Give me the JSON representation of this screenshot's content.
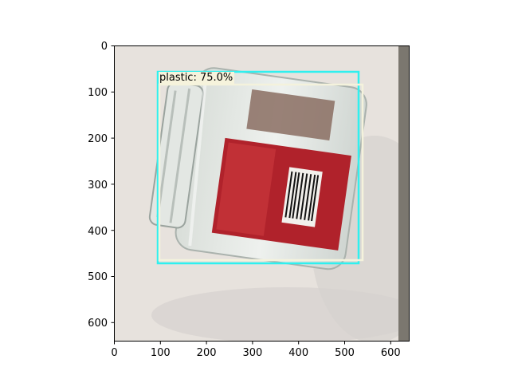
{
  "image": {
    "description_icon": "glass-jar-photo",
    "colors": {
      "background": "#e7e2dd",
      "shadow": "#d4d0cd",
      "box_cyan": "#2ff0ef",
      "box_cream": "#f4f2dc",
      "label_red": "#b0222b"
    }
  },
  "detection": {
    "label": "plastic: 75.0%",
    "class": "plastic",
    "score_percent": 75.0,
    "boxes": [
      {
        "color": "cyan",
        "x_min": 95,
        "y_min": 55,
        "x_max": 530,
        "y_max": 472
      },
      {
        "color": "cream",
        "x_min": 99,
        "y_min": 85,
        "x_max": 538,
        "y_max": 465
      }
    ]
  },
  "axes": {
    "x_ticks": [
      "0",
      "100",
      "200",
      "300",
      "400",
      "500",
      "600"
    ],
    "y_ticks": [
      "0",
      "100",
      "200",
      "300",
      "400",
      "500",
      "600"
    ],
    "xlim": [
      0,
      640
    ],
    "ylim": [
      640,
      0
    ]
  }
}
